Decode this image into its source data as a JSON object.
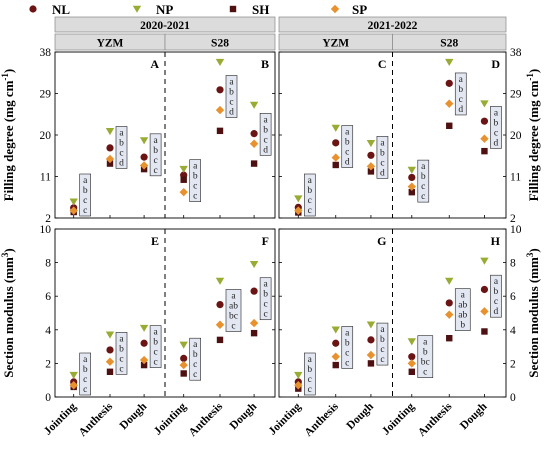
{
  "legend": [
    {
      "name": "NL",
      "marker": "circle",
      "color": "#6b1414"
    },
    {
      "name": "NP",
      "marker": "triangle-down",
      "color": "#9aab34"
    },
    {
      "name": "SH",
      "marker": "square",
      "color": "#4e1010"
    },
    {
      "name": "SP",
      "marker": "diamond",
      "color": "#e8912f"
    }
  ],
  "years": [
    "2020-2021",
    "2021-2022"
  ],
  "varieties": [
    "YZM",
    "S28"
  ],
  "row_labels": {
    "top": {
      "text": "Filling degree (mg cm",
      "sup": "-1",
      "close": ")"
    },
    "bottom": {
      "text": "Section modulus (mm",
      "sup": "3",
      "close": ")"
    }
  },
  "categories": [
    "Jointing",
    "Anthesis",
    "Dough"
  ],
  "chart_data": [
    {
      "type": "scatter",
      "panel": "A",
      "year": "2020-2021",
      "variety": "YZM",
      "metric": "Filling degree",
      "ylim": [
        2,
        38
      ],
      "yticks": [
        2,
        11,
        20,
        29,
        38
      ],
      "categories": [
        "Jointing",
        "Anthesis",
        "Dough"
      ],
      "series": [
        {
          "name": "NL",
          "values": [
            4.2,
            17.2,
            15.2
          ]
        },
        {
          "name": "NP",
          "values": [
            5.5,
            20.8,
            18.8
          ]
        },
        {
          "name": "SH",
          "values": [
            3.3,
            13.8,
            12.6
          ]
        },
        {
          "name": "SP",
          "values": [
            3.6,
            14.8,
            13.4
          ]
        }
      ],
      "letters": [
        [
          "a",
          "b",
          "c",
          "c"
        ],
        [
          "a",
          "b",
          "c",
          "d"
        ],
        [
          "a",
          "b",
          "c",
          "c"
        ]
      ]
    },
    {
      "type": "scatter",
      "panel": "B",
      "year": "2020-2021",
      "variety": "S28",
      "metric": "Filling degree",
      "ylim": [
        2,
        38
      ],
      "yticks": [
        2,
        11,
        20,
        29,
        38
      ],
      "categories": [
        "Jointing",
        "Anthesis",
        "Dough"
      ],
      "series": [
        {
          "name": "NL",
          "values": [
            11.3,
            29.8,
            20.3
          ]
        },
        {
          "name": "NP",
          "values": [
            12.6,
            35.8,
            26.5
          ]
        },
        {
          "name": "SH",
          "values": [
            10.3,
            20.9,
            13.8
          ]
        },
        {
          "name": "SP",
          "values": [
            7.6,
            25.4,
            18.1
          ]
        }
      ],
      "letters": [
        [
          "a",
          "b",
          "c",
          "c"
        ],
        [
          "a",
          "b",
          "c",
          "d"
        ],
        [
          "a",
          "b",
          "c",
          "d"
        ]
      ]
    },
    {
      "type": "scatter",
      "panel": "C",
      "year": "2021-2022",
      "variety": "YZM",
      "metric": "Filling degree",
      "ylim": [
        2,
        38
      ],
      "yticks": [
        2,
        11,
        20,
        29,
        38
      ],
      "categories": [
        "Jointing",
        "Anthesis",
        "Dough"
      ],
      "series": [
        {
          "name": "NL",
          "values": [
            4.3,
            18.3,
            15.6
          ]
        },
        {
          "name": "NP",
          "values": [
            6.2,
            21.5,
            18.2
          ]
        },
        {
          "name": "SH",
          "values": [
            3.2,
            13.5,
            12.1
          ]
        },
        {
          "name": "SP",
          "values": [
            3.6,
            15.1,
            13.2
          ]
        }
      ],
      "letters": [
        [
          "a",
          "b",
          "c",
          "c"
        ],
        [
          "a",
          "b",
          "c",
          "d"
        ],
        [
          "a",
          "b",
          "c",
          "d"
        ]
      ]
    },
    {
      "type": "scatter",
      "panel": "D",
      "year": "2021-2022",
      "variety": "S28",
      "metric": "Filling degree",
      "ylim": [
        2,
        38
      ],
      "yticks": [
        2,
        11,
        20,
        29,
        38
      ],
      "categories": [
        "Jointing",
        "Anthesis",
        "Dough"
      ],
      "series": [
        {
          "name": "NL",
          "values": [
            10.8,
            31.2,
            23.0
          ]
        },
        {
          "name": "NP",
          "values": [
            12.4,
            35.8,
            26.8
          ]
        },
        {
          "name": "SH",
          "values": [
            7.6,
            22.0,
            16.5
          ]
        },
        {
          "name": "SP",
          "values": [
            8.8,
            26.8,
            19.2
          ]
        }
      ],
      "letters": [
        [
          "a",
          "b",
          "c",
          "c"
        ],
        [
          "a",
          "b",
          "c",
          "d"
        ],
        [
          "a",
          "b",
          "c",
          "d"
        ]
      ]
    },
    {
      "type": "scatter",
      "panel": "E",
      "year": "2020-2021",
      "variety": "YZM",
      "metric": "Section modulus",
      "ylim": [
        0,
        10
      ],
      "yticks": [
        0,
        2,
        4,
        6,
        8,
        10
      ],
      "categories": [
        "Jointing",
        "Anthesis",
        "Dough"
      ],
      "series": [
        {
          "name": "NL",
          "values": [
            0.9,
            2.8,
            3.2
          ]
        },
        {
          "name": "NP",
          "values": [
            1.3,
            3.7,
            4.1
          ]
        },
        {
          "name": "SH",
          "values": [
            0.6,
            1.5,
            1.9
          ]
        },
        {
          "name": "SP",
          "values": [
            0.7,
            2.1,
            2.2
          ]
        }
      ],
      "letters": [
        [
          "a",
          "b",
          "c",
          "c"
        ],
        [
          "a",
          "b",
          "c",
          "c"
        ],
        [
          "a",
          "b",
          "c",
          "c"
        ]
      ]
    },
    {
      "type": "scatter",
      "panel": "F",
      "year": "2020-2021",
      "variety": "S28",
      "metric": "Section modulus",
      "ylim": [
        0,
        10
      ],
      "yticks": [
        0,
        2,
        4,
        6,
        8,
        10
      ],
      "categories": [
        "Jointing",
        "Anthesis",
        "Dough"
      ],
      "series": [
        {
          "name": "NL",
          "values": [
            2.3,
            5.5,
            6.3
          ]
        },
        {
          "name": "NP",
          "values": [
            3.1,
            6.9,
            7.9
          ]
        },
        {
          "name": "SH",
          "values": [
            1.4,
            3.4,
            3.8
          ]
        },
        {
          "name": "SP",
          "values": [
            1.9,
            4.3,
            4.4
          ]
        }
      ],
      "letters": [
        [
          "a",
          "b",
          "c",
          "c"
        ],
        [
          "a",
          "ab",
          "bc",
          "c"
        ],
        [
          "a",
          "b",
          "c",
          "c"
        ]
      ]
    },
    {
      "type": "scatter",
      "panel": "G",
      "year": "2021-2022",
      "variety": "YZM",
      "metric": "Section modulus",
      "ylim": [
        0,
        10
      ],
      "yticks": [
        0,
        2,
        4,
        6,
        8,
        10
      ],
      "categories": [
        "Jointing",
        "Anthesis",
        "Dough"
      ],
      "series": [
        {
          "name": "NL",
          "values": [
            0.9,
            3.2,
            3.4
          ]
        },
        {
          "name": "NP",
          "values": [
            1.3,
            4.0,
            4.3
          ]
        },
        {
          "name": "SH",
          "values": [
            0.5,
            1.9,
            2.0
          ]
        },
        {
          "name": "SP",
          "values": [
            0.7,
            2.4,
            2.5
          ]
        }
      ],
      "letters": [
        [
          "a",
          "b",
          "c",
          "c"
        ],
        [
          "a",
          "b",
          "c",
          "c"
        ],
        [
          "a",
          "b",
          "c",
          "c"
        ]
      ]
    },
    {
      "type": "scatter",
      "panel": "H",
      "year": "2021-2022",
      "variety": "S28",
      "metric": "Section modulus",
      "ylim": [
        0,
        10
      ],
      "yticks": [
        0,
        2,
        4,
        6,
        8,
        10
      ],
      "categories": [
        "Jointing",
        "Anthesis",
        "Dough"
      ],
      "series": [
        {
          "name": "NL",
          "values": [
            2.4,
            5.6,
            6.4
          ]
        },
        {
          "name": "NP",
          "values": [
            3.3,
            6.9,
            8.1
          ]
        },
        {
          "name": "SH",
          "values": [
            1.5,
            3.5,
            3.9
          ]
        },
        {
          "name": "SP",
          "values": [
            2.0,
            4.9,
            5.1
          ]
        }
      ],
      "letters": [
        [
          "a",
          "b",
          "bc",
          "c"
        ],
        [
          "a",
          "ab",
          "ab",
          "b"
        ],
        [
          "a",
          "b",
          "c",
          "d"
        ]
      ]
    }
  ]
}
